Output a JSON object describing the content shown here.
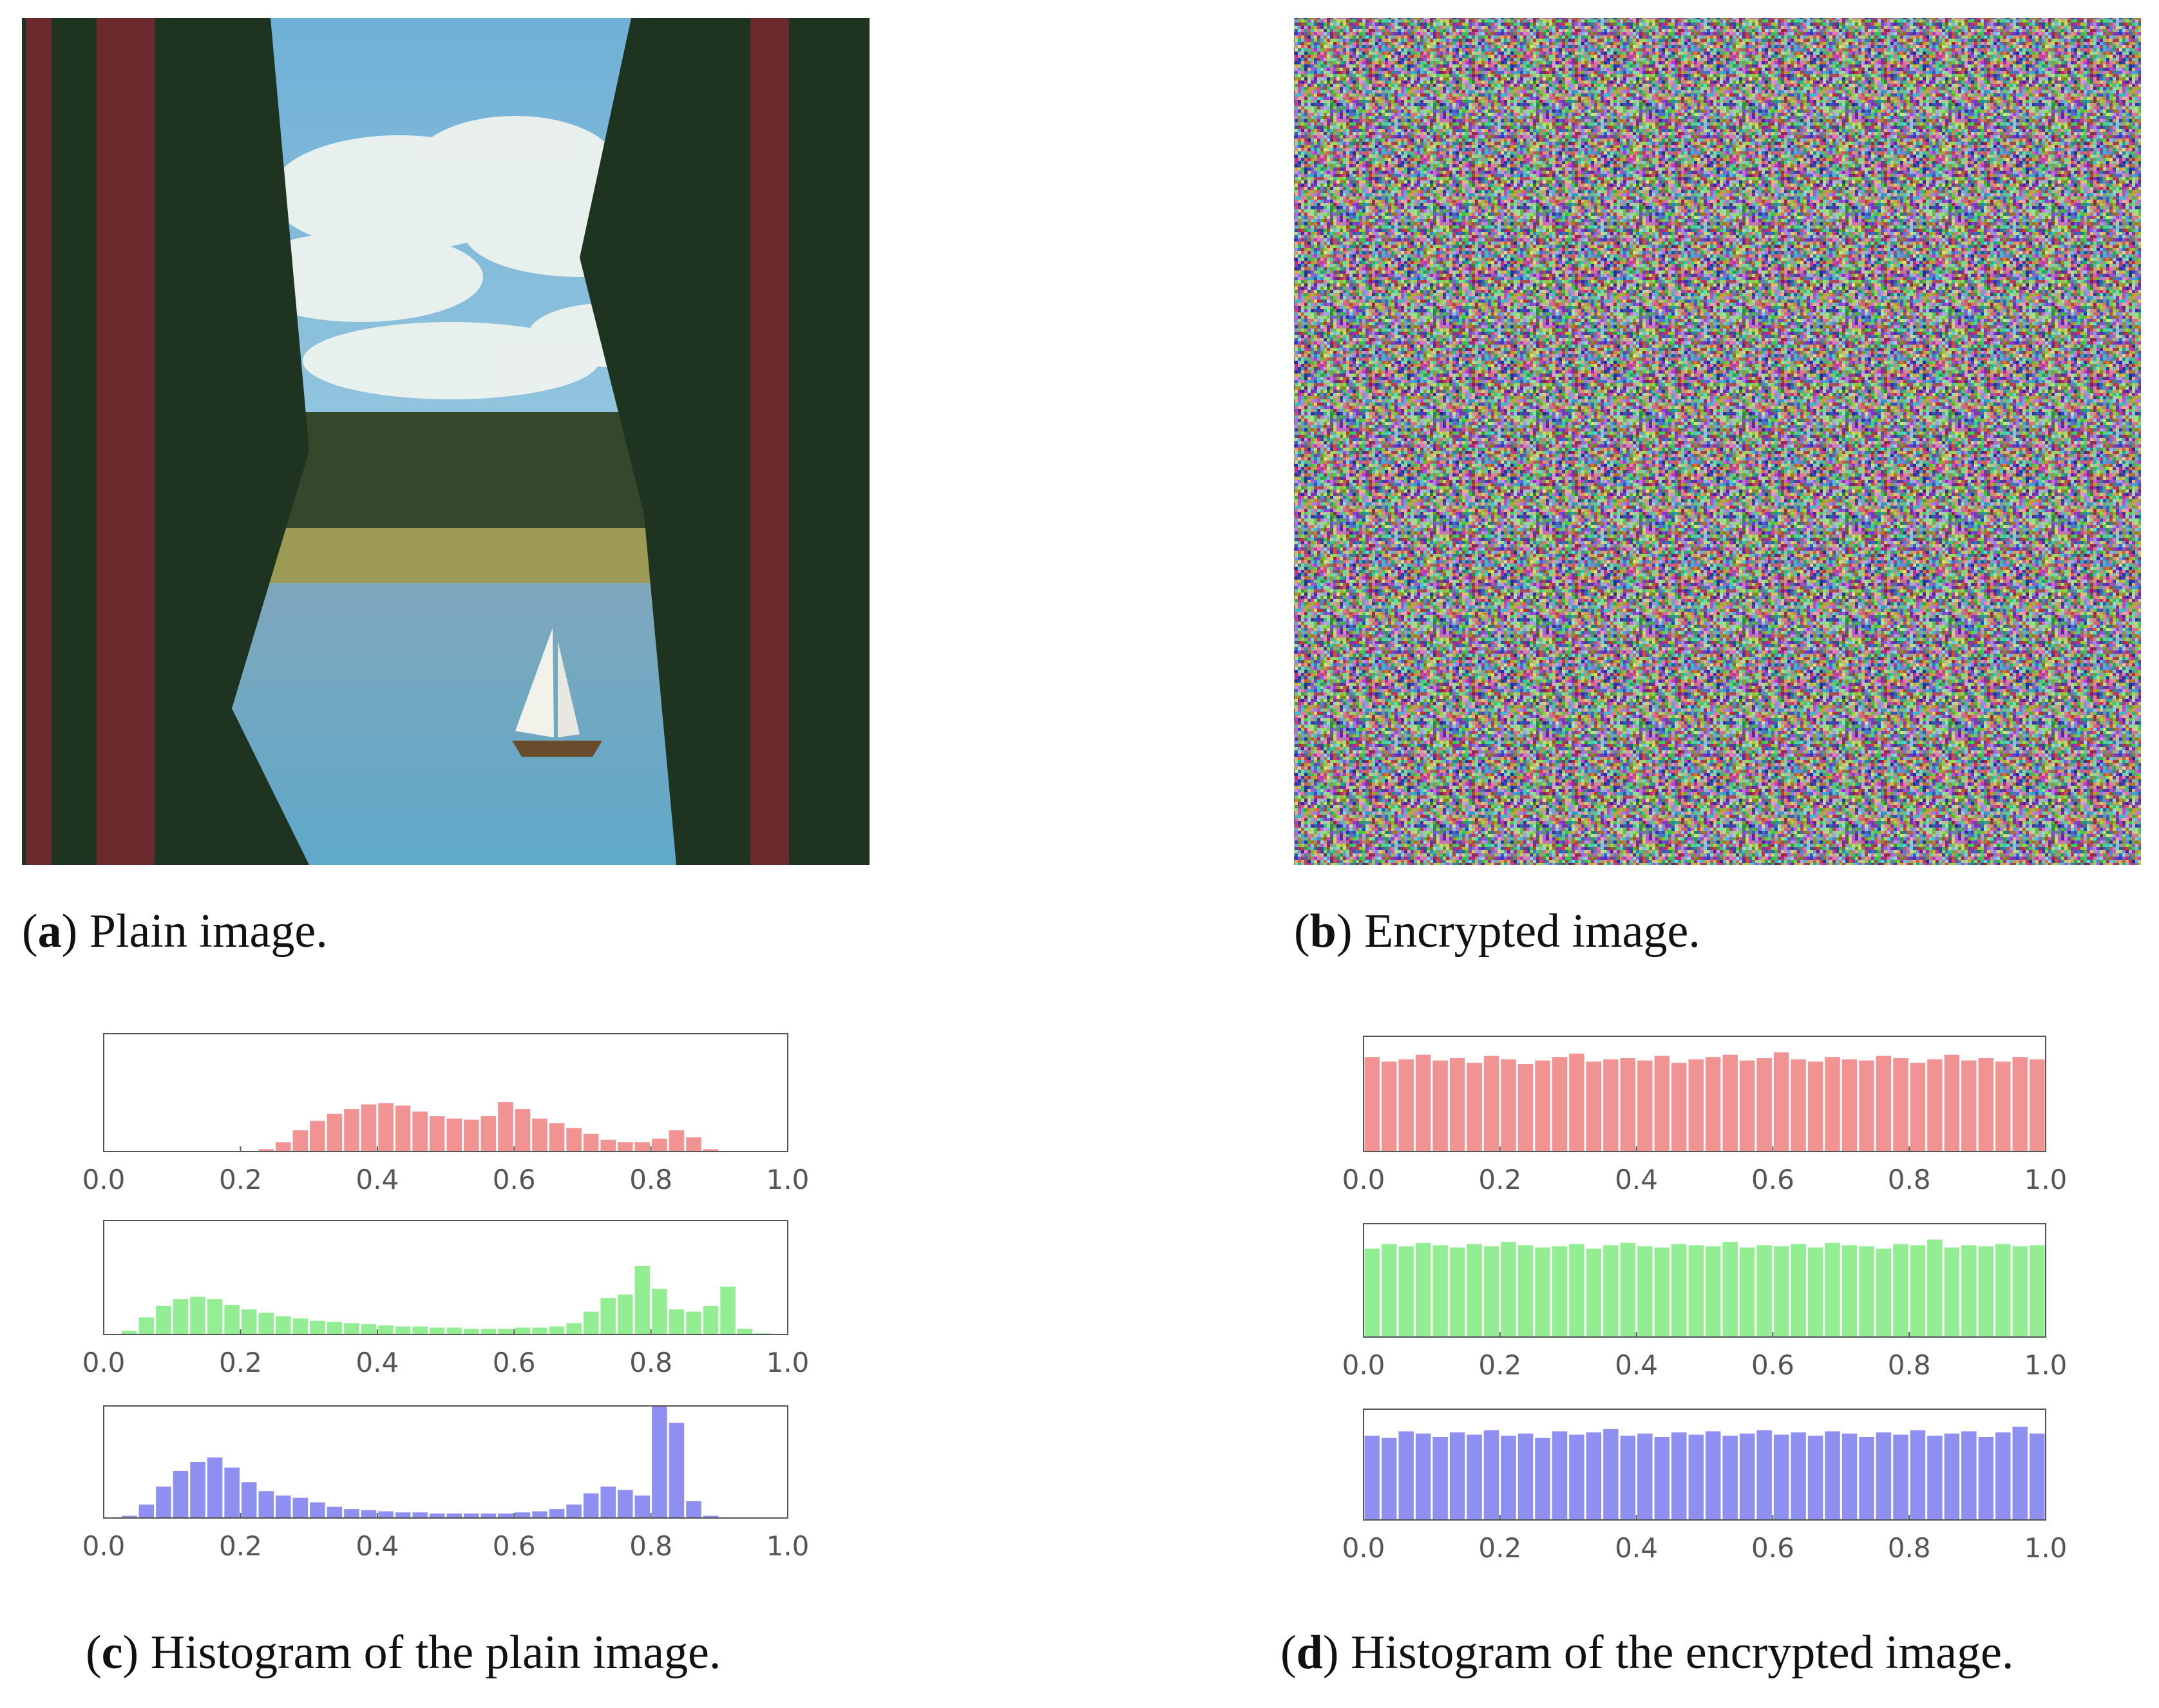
{
  "panels": [
    {
      "caption": "(a) Plain image."
    },
    {
      "caption": "(b) Encrypted image."
    },
    {
      "caption": "(c) Histogram of the plain image."
    },
    {
      "caption": "(d) Histogram of the encrypted image."
    }
  ],
  "chart_data": [
    {
      "type": "histogram",
      "color": "#f29393",
      "ylim": [
        0,
        100
      ],
      "xlim": [
        0,
        1
      ],
      "xticks": [
        {
          "value": 0,
          "label": "0.0"
        },
        {
          "value": 0.2,
          "label": "0.2"
        },
        {
          "value": 0.4,
          "label": "0.4"
        },
        {
          "value": 0.6,
          "label": "0.6"
        },
        {
          "value": 0.8,
          "label": "0.8"
        },
        {
          "value": 1,
          "label": "1.0"
        }
      ],
      "bins": [
        0,
        0.025,
        0.05,
        0.075,
        0.1,
        0.125,
        0.15,
        0.175,
        0.2,
        0.225,
        0.25,
        0.275,
        0.3,
        0.325,
        0.35,
        0.375,
        0.4,
        0.425,
        0.45,
        0.475,
        0.5,
        0.525,
        0.55,
        0.575,
        0.6,
        0.625,
        0.65,
        0.675,
        0.7,
        0.725,
        0.75,
        0.775,
        0.8,
        0.825,
        0.85,
        0.875,
        0.9,
        0.925,
        0.95,
        0.975,
        1
      ],
      "values": [
        0,
        0,
        0,
        0,
        0,
        0,
        0,
        0,
        0,
        2,
        8,
        18,
        26,
        32,
        36,
        40,
        41,
        39,
        34,
        30,
        28,
        27,
        30,
        42,
        36,
        28,
        24,
        20,
        15,
        10,
        8,
        8,
        11,
        18,
        12,
        2,
        0,
        0,
        0,
        0
      ]
    },
    {
      "type": "histogram",
      "color": "#93ee93",
      "ylim": [
        0,
        100
      ],
      "xlim": [
        0,
        1
      ],
      "xticks": [
        {
          "value": 0,
          "label": "0.0"
        },
        {
          "value": 0.2,
          "label": "0.2"
        },
        {
          "value": 0.4,
          "label": "0.4"
        },
        {
          "value": 0.6,
          "label": "0.6"
        },
        {
          "value": 0.8,
          "label": "0.8"
        },
        {
          "value": 1,
          "label": "1.0"
        }
      ],
      "bins": [
        0,
        0.025,
        0.05,
        0.075,
        0.1,
        0.125,
        0.15,
        0.175,
        0.2,
        0.225,
        0.25,
        0.275,
        0.3,
        0.325,
        0.35,
        0.375,
        0.4,
        0.425,
        0.45,
        0.475,
        0.5,
        0.525,
        0.55,
        0.575,
        0.6,
        0.625,
        0.65,
        0.675,
        0.7,
        0.725,
        0.75,
        0.775,
        0.8,
        0.825,
        0.85,
        0.875,
        0.9,
        0.925,
        0.95,
        0.975,
        1
      ],
      "values": [
        0,
        3,
        15,
        25,
        31,
        33,
        31,
        26,
        22,
        19,
        16,
        14,
        12,
        11,
        10,
        9,
        8,
        7,
        7,
        6,
        6,
        5,
        5,
        5,
        6,
        6,
        7,
        10,
        20,
        32,
        35,
        60,
        40,
        22,
        20,
        25,
        42,
        5,
        1,
        0
      ]
    },
    {
      "type": "histogram",
      "color": "#8f8ff2",
      "ylim": [
        0,
        100
      ],
      "xlim": [
        0,
        1
      ],
      "xticks": [
        {
          "value": 0,
          "label": "0.0"
        },
        {
          "value": 0.2,
          "label": "0.2"
        },
        {
          "value": 0.4,
          "label": "0.4"
        },
        {
          "value": 0.6,
          "label": "0.6"
        },
        {
          "value": 0.8,
          "label": "0.8"
        },
        {
          "value": 1,
          "label": "1.0"
        }
      ],
      "bins": [
        0,
        0.025,
        0.05,
        0.075,
        0.1,
        0.125,
        0.15,
        0.175,
        0.2,
        0.225,
        0.25,
        0.275,
        0.3,
        0.325,
        0.35,
        0.375,
        0.4,
        0.425,
        0.45,
        0.475,
        0.5,
        0.525,
        0.55,
        0.575,
        0.6,
        0.625,
        0.65,
        0.675,
        0.7,
        0.725,
        0.75,
        0.775,
        0.8,
        0.825,
        0.85,
        0.875,
        0.9,
        0.925,
        0.95,
        0.975,
        1
      ],
      "values": [
        0,
        2,
        12,
        28,
        42,
        50,
        54,
        45,
        32,
        24,
        20,
        18,
        14,
        10,
        8,
        7,
        6,
        5,
        5,
        4,
        4,
        4,
        4,
        4,
        5,
        6,
        8,
        12,
        22,
        28,
        25,
        20,
        100,
        85,
        15,
        2,
        0,
        0,
        0,
        0
      ]
    },
    {
      "type": "histogram",
      "color": "#f29393",
      "ylim": [
        0,
        100
      ],
      "xlim": [
        0,
        1
      ],
      "xticks": [
        {
          "value": 0,
          "label": "0.0"
        },
        {
          "value": 0.2,
          "label": "0.2"
        },
        {
          "value": 0.4,
          "label": "0.4"
        },
        {
          "value": 0.6,
          "label": "0.6"
        },
        {
          "value": 0.8,
          "label": "0.8"
        },
        {
          "value": 1,
          "label": "1.0"
        }
      ],
      "bins": [
        0,
        0.025,
        0.05,
        0.075,
        0.1,
        0.125,
        0.15,
        0.175,
        0.2,
        0.225,
        0.25,
        0.275,
        0.3,
        0.325,
        0.35,
        0.375,
        0.4,
        0.425,
        0.45,
        0.475,
        0.5,
        0.525,
        0.55,
        0.575,
        0.6,
        0.625,
        0.65,
        0.675,
        0.7,
        0.725,
        0.75,
        0.775,
        0.8,
        0.825,
        0.85,
        0.875,
        0.9,
        0.925,
        0.95,
        0.975,
        1
      ],
      "values": [
        82,
        78,
        80,
        84,
        79,
        81,
        77,
        83,
        80,
        76,
        79,
        82,
        85,
        78,
        80,
        81,
        79,
        83,
        77,
        80,
        82,
        84,
        79,
        81,
        86,
        80,
        78,
        82,
        80,
        79,
        83,
        81,
        77,
        80,
        84,
        79,
        81,
        78,
        82,
        80
      ]
    },
    {
      "type": "histogram",
      "color": "#93ee93",
      "ylim": [
        0,
        100
      ],
      "xlim": [
        0,
        1
      ],
      "xticks": [
        {
          "value": 0,
          "label": "0.0"
        },
        {
          "value": 0.2,
          "label": "0.2"
        },
        {
          "value": 0.4,
          "label": "0.4"
        },
        {
          "value": 0.6,
          "label": "0.6"
        },
        {
          "value": 0.8,
          "label": "0.8"
        },
        {
          "value": 1,
          "label": "1.0"
        }
      ],
      "bins": [
        0,
        0.025,
        0.05,
        0.075,
        0.1,
        0.125,
        0.15,
        0.175,
        0.2,
        0.225,
        0.25,
        0.275,
        0.3,
        0.325,
        0.35,
        0.375,
        0.4,
        0.425,
        0.45,
        0.475,
        0.5,
        0.525,
        0.55,
        0.575,
        0.6,
        0.625,
        0.65,
        0.675,
        0.7,
        0.725,
        0.75,
        0.775,
        0.8,
        0.825,
        0.85,
        0.875,
        0.9,
        0.925,
        0.95,
        0.975,
        1
      ],
      "values": [
        78,
        82,
        80,
        83,
        81,
        79,
        82,
        80,
        84,
        81,
        79,
        80,
        82,
        78,
        81,
        83,
        80,
        79,
        82,
        81,
        80,
        84,
        79,
        81,
        80,
        82,
        79,
        83,
        81,
        80,
        78,
        82,
        81,
        86,
        79,
        81,
        80,
        82,
        80,
        81
      ]
    },
    {
      "type": "histogram",
      "color": "#8f8ff2",
      "ylim": [
        0,
        100
      ],
      "xlim": [
        0,
        1
      ],
      "xticks": [
        {
          "value": 0,
          "label": "0.0"
        },
        {
          "value": 0.2,
          "label": "0.2"
        },
        {
          "value": 0.4,
          "label": "0.4"
        },
        {
          "value": 0.6,
          "label": "0.6"
        },
        {
          "value": 0.8,
          "label": "0.8"
        },
        {
          "value": 1,
          "label": "1.0"
        }
      ],
      "bins": [
        0,
        0.025,
        0.05,
        0.075,
        0.1,
        0.125,
        0.15,
        0.175,
        0.2,
        0.225,
        0.25,
        0.275,
        0.3,
        0.325,
        0.35,
        0.375,
        0.4,
        0.425,
        0.45,
        0.475,
        0.5,
        0.525,
        0.55,
        0.575,
        0.6,
        0.625,
        0.65,
        0.675,
        0.7,
        0.725,
        0.75,
        0.775,
        0.8,
        0.825,
        0.85,
        0.875,
        0.9,
        0.925,
        0.95,
        0.975,
        1
      ],
      "values": [
        76,
        74,
        80,
        78,
        75,
        79,
        77,
        81,
        76,
        78,
        74,
        80,
        77,
        79,
        82,
        76,
        78,
        75,
        79,
        77,
        80,
        76,
        78,
        81,
        77,
        79,
        76,
        80,
        78,
        75,
        79,
        77,
        81,
        76,
        78,
        80,
        75,
        79,
        84,
        78
      ]
    }
  ]
}
